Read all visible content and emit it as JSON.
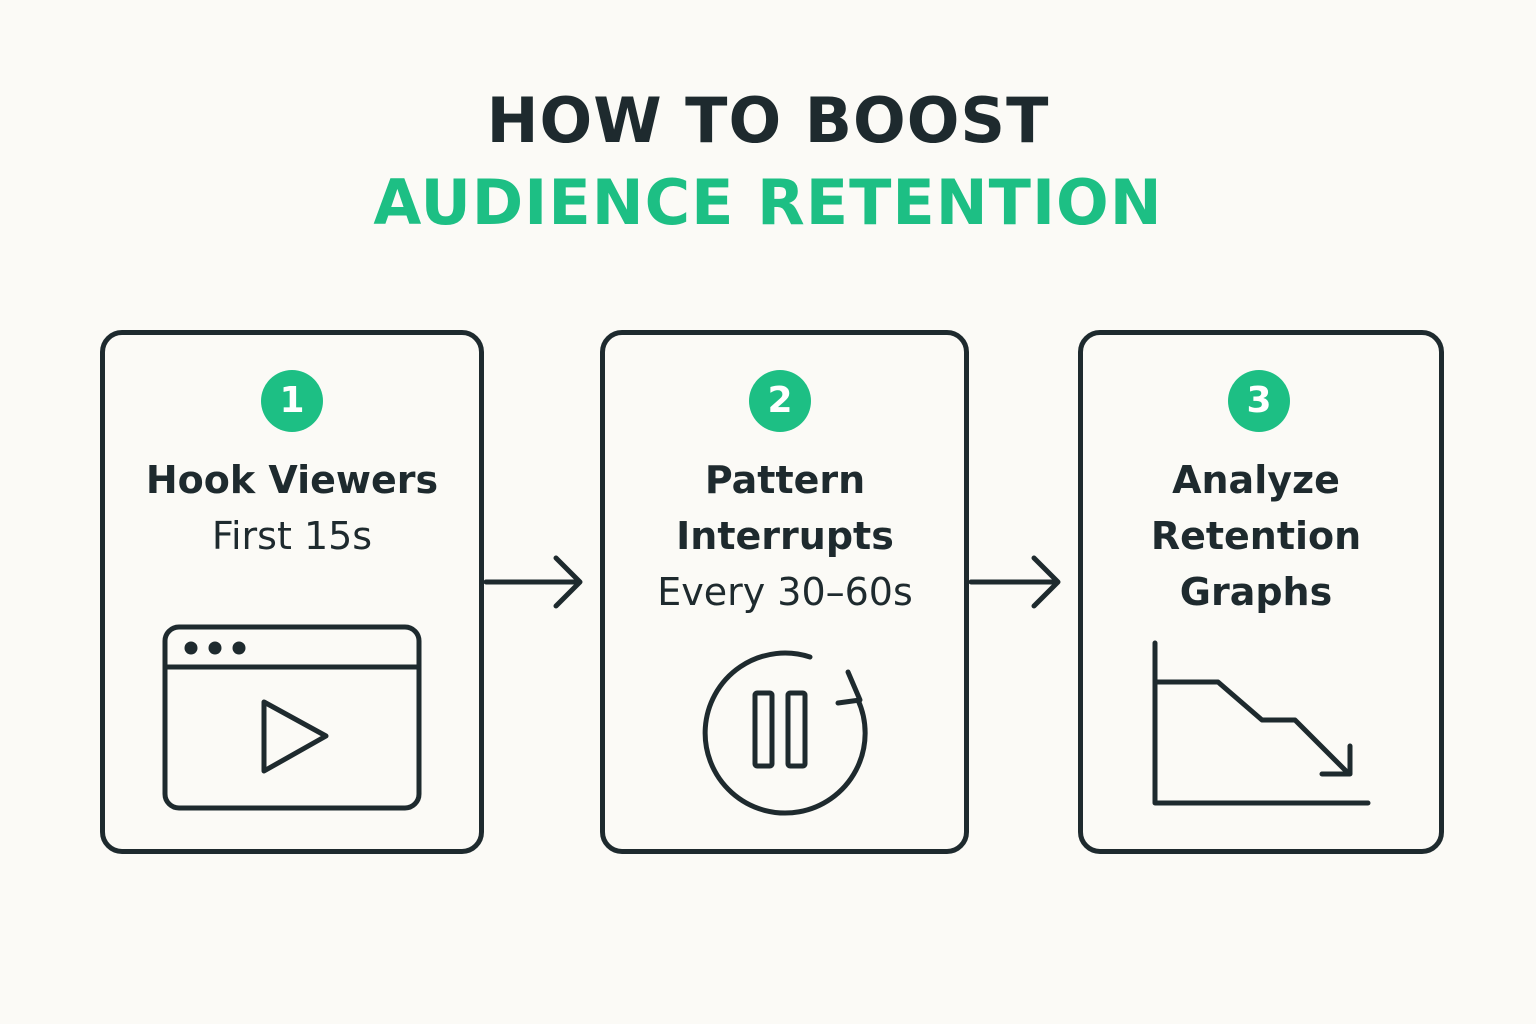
{
  "title": {
    "line1": "HOW TO BOOST",
    "line2": "AUDIENCE RETENTION"
  },
  "colors": {
    "accent": "#1dbf84",
    "ink": "#1e2a2e",
    "background": "#fbfaf6"
  },
  "steps": [
    {
      "number": "1",
      "heading": "Hook Viewers",
      "subtext": "First 15s",
      "icon": "video-player-icon"
    },
    {
      "number": "2",
      "heading_line1": "Pattern",
      "heading_line2": "Interrupts",
      "subtext": "Every 30–60s",
      "icon": "pause-refresh-icon"
    },
    {
      "number": "3",
      "heading_line1": "Analyze",
      "heading_line2": "Retention",
      "heading_line3": "Graphs",
      "icon": "declining-graph-icon"
    }
  ]
}
